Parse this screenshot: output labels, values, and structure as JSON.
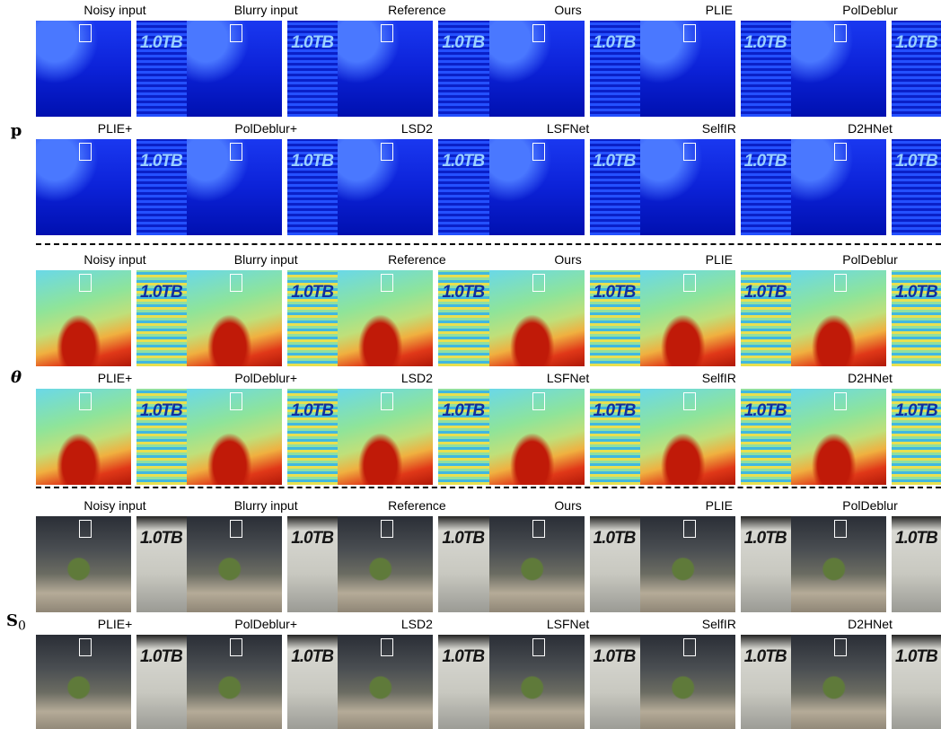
{
  "figure": {
    "crop_text": "1.0TB",
    "sections": [
      {
        "label": "p",
        "rows": [
          [
            "Noisy input",
            "Blurry input",
            "Reference",
            "Ours",
            "PLIE",
            "PolDeblur"
          ],
          [
            "PLIE+",
            "PolDeblur+",
            "LSD2",
            "LSFNet",
            "SelfIR",
            "D2HNet"
          ]
        ]
      },
      {
        "label": "θ",
        "rows": [
          [
            "Noisy input",
            "Blurry input",
            "Reference",
            "Ours",
            "PLIE",
            "PolDeblur"
          ],
          [
            "PLIE+",
            "PolDeblur+",
            "LSD2",
            "LSFNet",
            "SelfIR",
            "D2HNet"
          ]
        ]
      },
      {
        "label": "S",
        "label_sub": "0",
        "rows": [
          [
            "Noisy input",
            "Blurry input",
            "Reference",
            "Ours",
            "PLIE",
            "PolDeblur"
          ],
          [
            "PLIE+",
            "PolDeblur+",
            "LSD2",
            "LSFNet",
            "SelfIR",
            "D2HNet"
          ]
        ]
      }
    ]
  }
}
